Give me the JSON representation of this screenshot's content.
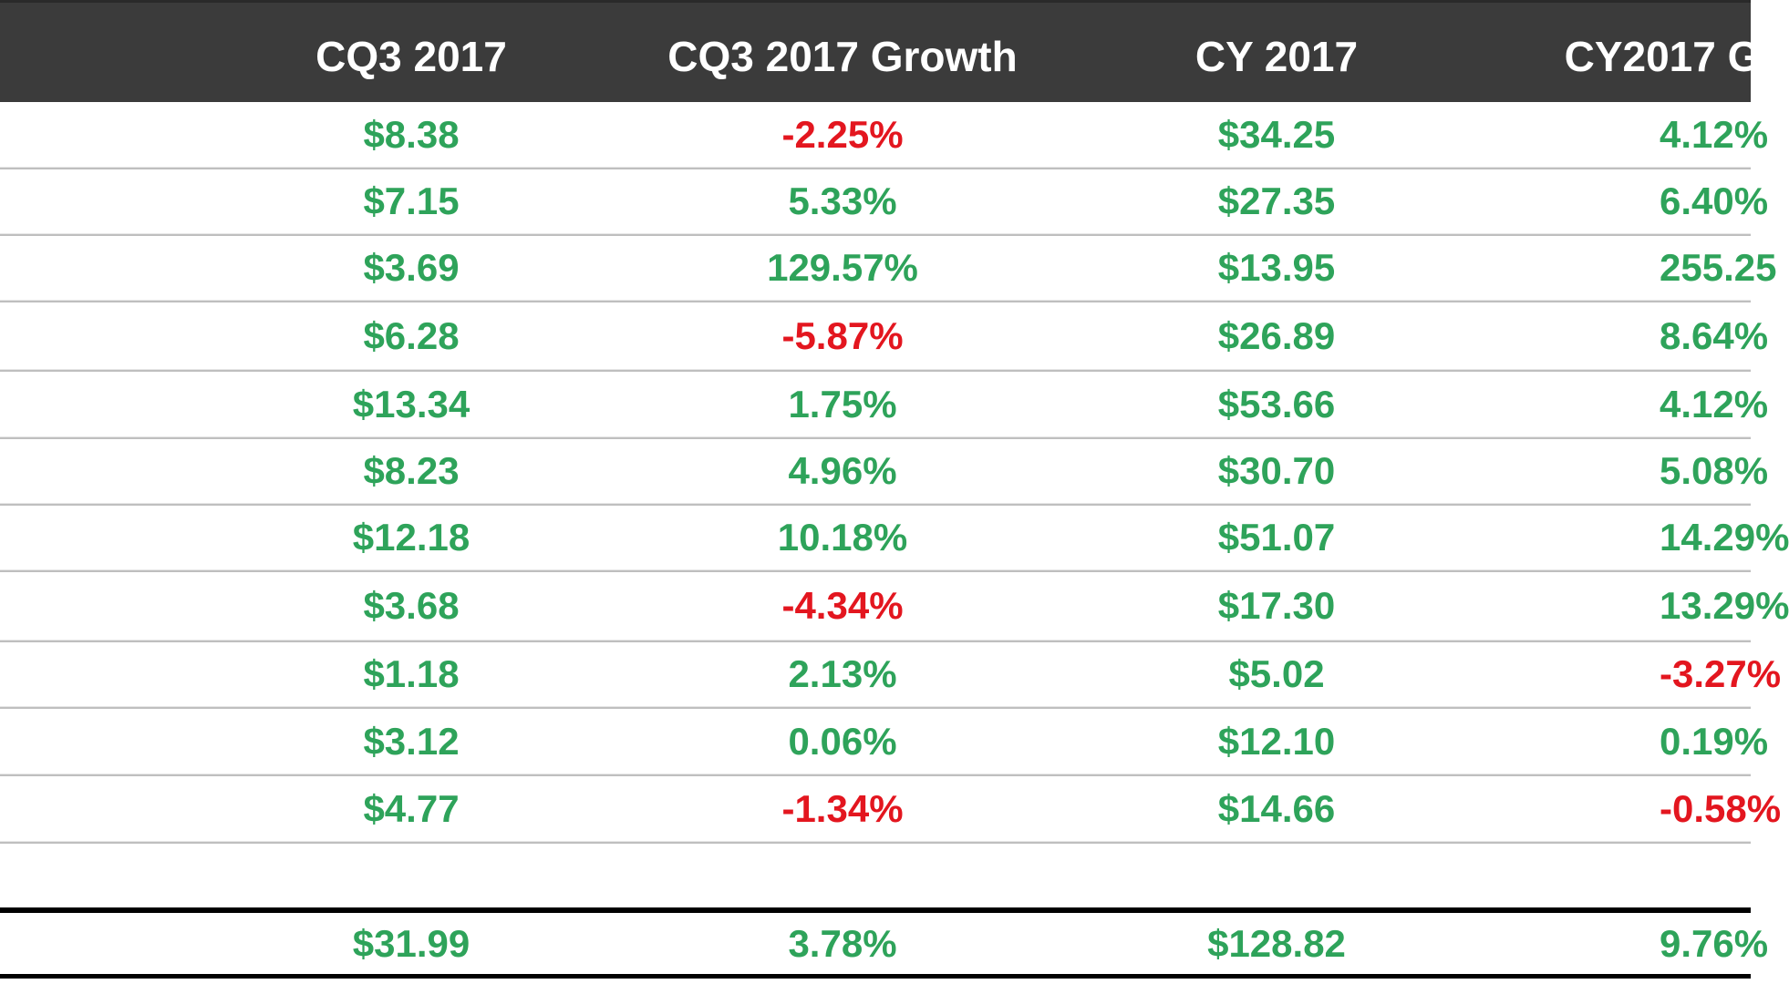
{
  "chart_data": {
    "type": "table",
    "columns": [
      "",
      "CQ3 2017",
      "CQ3 2017 Growth",
      "CY 2017",
      "CY2017 G"
    ],
    "rows": [
      {
        "cq3": "$8.38",
        "cq3_growth": "-2.25%",
        "cy": "$34.25",
        "cy_growth": "4.12%"
      },
      {
        "cq3": "$7.15",
        "cq3_growth": "5.33%",
        "cy": "$27.35",
        "cy_growth": "6.40%"
      },
      {
        "cq3": "$3.69",
        "cq3_growth": "129.57%",
        "cy": "$13.95",
        "cy_growth": "255.25"
      },
      {
        "cq3": "$6.28",
        "cq3_growth": "-5.87%",
        "cy": "$26.89",
        "cy_growth": "8.64%"
      },
      {
        "cq3": "$13.34",
        "cq3_growth": "1.75%",
        "cy": "$53.66",
        "cy_growth": "4.12%"
      },
      {
        "cq3": "$8.23",
        "cq3_growth": "4.96%",
        "cy": "$30.70",
        "cy_growth": "5.08%"
      },
      {
        "cq3": "$12.18",
        "cq3_growth": "10.18%",
        "cy": "$51.07",
        "cy_growth": "14.29%"
      },
      {
        "cq3": "$3.68",
        "cq3_growth": "-4.34%",
        "cy": "$17.30",
        "cy_growth": "13.29%"
      },
      {
        "cq3": "$1.18",
        "cq3_growth": "2.13%",
        "cy": "$5.02",
        "cy_growth": "-3.27%"
      },
      {
        "cq3": "$3.12",
        "cq3_growth": "0.06%",
        "cy": "$12.10",
        "cy_growth": "0.19%"
      },
      {
        "cq3": "$4.77",
        "cq3_growth": "-1.34%",
        "cy": "$14.66",
        "cy_growth": "-0.58%"
      }
    ],
    "total": {
      "cq3": "$31.99",
      "cq3_growth": "3.78%",
      "cy": "$128.82",
      "cy_growth": "9.76%"
    }
  },
  "colors": {
    "header_bg": "#3b3b3b",
    "header_text": "#ffffff",
    "positive": "#2ea35a",
    "negative": "#e3161f"
  }
}
